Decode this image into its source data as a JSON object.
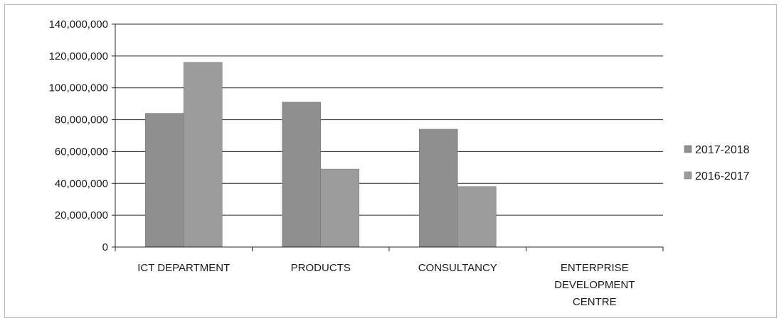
{
  "chart_data": {
    "type": "bar",
    "title": "",
    "xlabel": "",
    "ylabel": "",
    "categories": [
      [
        "ICT DEPARTMENT"
      ],
      [
        "PRODUCTS"
      ],
      [
        "CONSULTANCY"
      ],
      [
        "ENTERPRISE",
        "DEVELOPMENT",
        "CENTRE"
      ]
    ],
    "series": [
      {
        "name": "2017-2018",
        "values": [
          84000000,
          91000000,
          74000000,
          0
        ]
      },
      {
        "name": "2016-2017",
        "values": [
          116000000,
          49000000,
          38000000,
          0
        ]
      }
    ],
    "ylim": [
      0,
      140000000
    ],
    "yticks": [
      0,
      20000000,
      40000000,
      60000000,
      80000000,
      100000000,
      120000000,
      140000000
    ],
    "ytick_labels": [
      "0",
      "20,000,000",
      "40,000,000",
      "60,000,000",
      "80,000,000",
      "100,000,000",
      "120,000,000",
      "140,000,000"
    ],
    "grid": true,
    "legend_position": "right",
    "colors": {
      "series": [
        "#8f8f8f",
        "#9c9c9c"
      ],
      "grid": "#2a2a2a",
      "axis": "#2a2a2a"
    }
  }
}
